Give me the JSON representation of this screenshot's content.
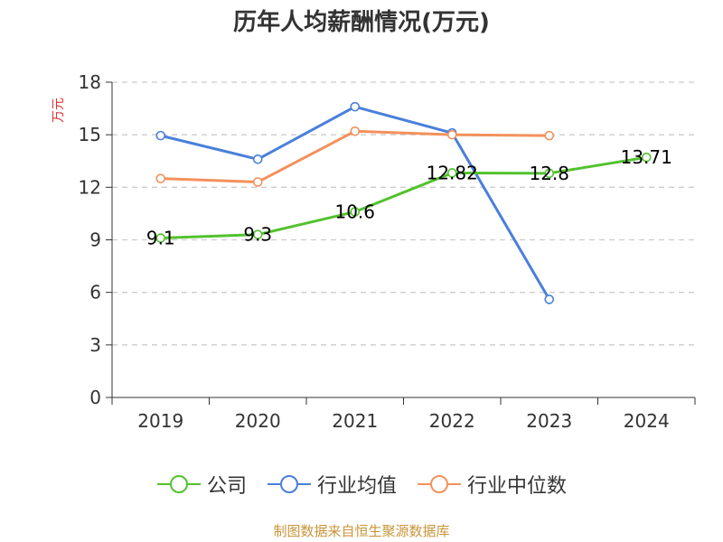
{
  "chart_data": {
    "type": "line",
    "title": "历年人均薪酬情况(万元)",
    "ylabel": "万元",
    "xlabel": "",
    "categories": [
      "2019",
      "2020",
      "2021",
      "2022",
      "2023",
      "2024"
    ],
    "ylim": [
      0,
      18
    ],
    "yticks": [
      0,
      3,
      6,
      9,
      12,
      15,
      18
    ],
    "grid": true,
    "legend_position": "bottom",
    "series": [
      {
        "name": "公司",
        "color": "#52c22e",
        "values": [
          9.1,
          9.3,
          10.6,
          12.82,
          12.8,
          13.71
        ],
        "labels": [
          "9.1",
          "9.3",
          "10.6",
          "12.82",
          "12.8",
          "13.71"
        ]
      },
      {
        "name": "行业均值",
        "color": "#4a7fdb",
        "values": [
          14.95,
          13.6,
          16.6,
          15.1,
          5.6,
          null
        ]
      },
      {
        "name": "行业中位数",
        "color": "#f3915c",
        "values": [
          12.5,
          12.3,
          15.2,
          15.0,
          14.95,
          null
        ]
      }
    ]
  },
  "source": {
    "text": "制图数据来自恒生聚源数据库",
    "color": "#c8953a"
  },
  "colors": {
    "ylabel": "#e03030",
    "axis": "#333333",
    "grid": "#cccccc"
  }
}
